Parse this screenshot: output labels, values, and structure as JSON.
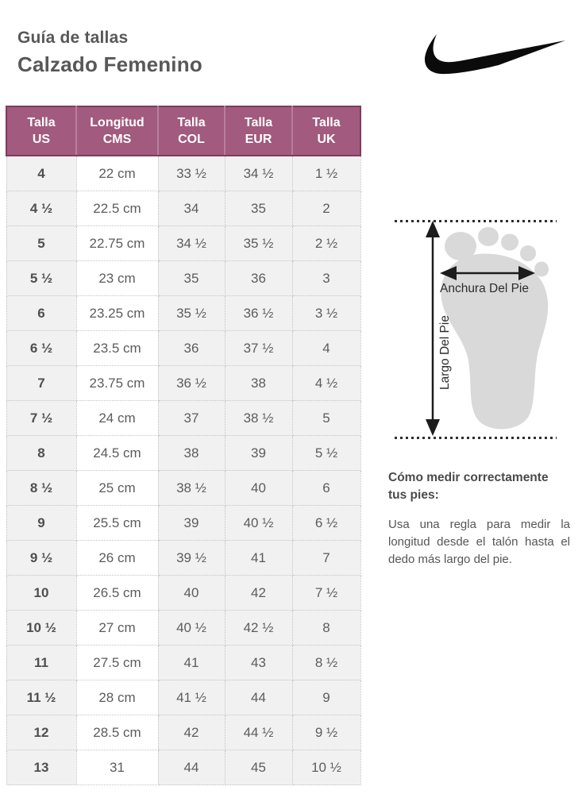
{
  "header": {
    "title_line1": "Guía de tallas",
    "title_line2": "Calzado Femenino",
    "logo_icon": "nike-swoosh-icon"
  },
  "table": {
    "headers": [
      "Talla\nUS",
      "Longitud\nCMS",
      "Talla\nCOL",
      "Talla\nEUR",
      "Talla\nUK"
    ],
    "rows": [
      [
        "4",
        "22 cm",
        "33 ½",
        "34 ½",
        "1 ½"
      ],
      [
        "4 ½",
        "22.5 cm",
        "34",
        "35",
        "2"
      ],
      [
        "5",
        "22.75 cm",
        "34 ½",
        "35 ½",
        "2 ½"
      ],
      [
        "5 ½",
        "23 cm",
        "35",
        "36",
        "3"
      ],
      [
        "6",
        "23.25 cm",
        "35 ½",
        "36 ½",
        "3 ½"
      ],
      [
        "6 ½",
        "23.5 cm",
        "36",
        "37 ½",
        "4"
      ],
      [
        "7",
        "23.75 cm",
        "36 ½",
        "38",
        "4 ½"
      ],
      [
        "7 ½",
        "24 cm",
        "37",
        "38 ½",
        "5"
      ],
      [
        "8",
        "24.5 cm",
        "38",
        "39",
        "5 ½"
      ],
      [
        "8 ½",
        "25 cm",
        "38 ½",
        "40",
        "6"
      ],
      [
        "9",
        "25.5 cm",
        "39",
        "40 ½",
        "6 ½"
      ],
      [
        "9 ½",
        "26 cm",
        "39 ½",
        "41",
        "7"
      ],
      [
        "10",
        "26.5 cm",
        "40",
        "42",
        "7 ½"
      ],
      [
        "10 ½",
        "27 cm",
        "40 ½",
        "42 ½",
        "8"
      ],
      [
        "11",
        "27.5 cm",
        "41",
        "43",
        "8 ½"
      ],
      [
        "11 ½",
        "28 cm",
        "41 ½",
        "44",
        "9"
      ],
      [
        "12",
        "28.5 cm",
        "42",
        "44 ½",
        "9 ½"
      ],
      [
        "13",
        "31",
        "44",
        "45",
        "10 ½"
      ]
    ]
  },
  "diagram": {
    "width_label": "Anchura Del Pie",
    "length_label": "Largo Del Pie"
  },
  "instructions": {
    "heading": "Cómo medir correctamente tus pies:",
    "body": "Usa una regla para medir la longitud desde el talón hasta el dedo más largo del pie."
  },
  "colors": {
    "header_bg": "#a25a7e",
    "header_border": "#7e3c5d",
    "cell_bg": "#f1f1f1",
    "foot_fill": "#d9d9d9",
    "text_gray": "#58585a"
  }
}
